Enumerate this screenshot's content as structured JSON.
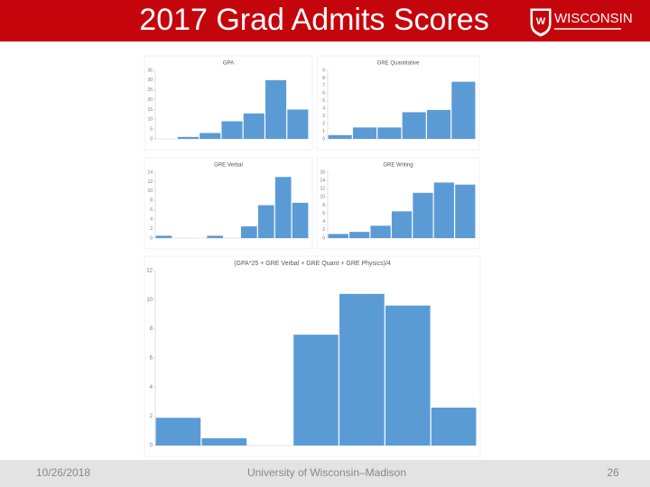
{
  "header": {
    "title": "2017 Grad Admits Scores",
    "logo": "WISCONSIN"
  },
  "footer": {
    "date": "10/26/2018",
    "organization": "University of Wisconsin–Madison",
    "page": "26"
  },
  "chart_data": [
    {
      "type": "bar",
      "title": "GPA",
      "categories": [
        null,
        null,
        null,
        null,
        null,
        null,
        null
      ],
      "values": [
        0,
        1,
        3,
        9,
        13,
        30,
        15
      ],
      "color": "#5b9bd5",
      "ylim": [
        0,
        35
      ],
      "yticks": [
        0,
        5,
        10,
        15,
        20,
        25,
        30,
        35
      ]
    },
    {
      "type": "bar",
      "title": "GRE Quantitative",
      "categories": [
        null,
        null,
        null,
        null,
        null,
        null
      ],
      "values": [
        0.5,
        1.5,
        1.5,
        3.5,
        3.8,
        7.5
      ],
      "color": "#5b9bd5",
      "ylim": [
        0,
        9
      ],
      "yticks": [
        0,
        1,
        2,
        3,
        4,
        5,
        6,
        7,
        8,
        9
      ]
    },
    {
      "type": "bar",
      "title": "GRE Verbal",
      "categories": [
        null,
        null,
        null,
        null,
        null,
        null,
        null,
        null,
        null
      ],
      "values": [
        0.5,
        0,
        0,
        0.5,
        0,
        2.5,
        7,
        13,
        7.5
      ],
      "color": "#5b9bd5",
      "ylim": [
        0,
        14
      ],
      "yticks": [
        0,
        2,
        4,
        6,
        8,
        10,
        12,
        14
      ]
    },
    {
      "type": "bar",
      "title": "GRE Writing",
      "categories": [
        null,
        null,
        null,
        null,
        null,
        null,
        null
      ],
      "values": [
        1,
        1.5,
        3,
        6.5,
        11,
        13.5,
        13
      ],
      "color": "#5b9bd5",
      "ylim": [
        0,
        16
      ],
      "yticks": [
        0,
        2,
        4,
        6,
        8,
        10,
        12,
        14,
        16
      ]
    },
    {
      "type": "bar",
      "title": "(GPA*25 + GRE Verbal + GRE Quant + GRE Physics)/4",
      "categories": [
        null,
        null,
        null,
        null,
        null,
        null,
        null
      ],
      "values": [
        1.9,
        0.5,
        0,
        7.6,
        10.4,
        9.6,
        2.6
      ],
      "color": "#5b9bd5",
      "ylim": [
        0,
        12
      ],
      "yticks": [
        0,
        2,
        4,
        6,
        8,
        10,
        12
      ]
    }
  ]
}
